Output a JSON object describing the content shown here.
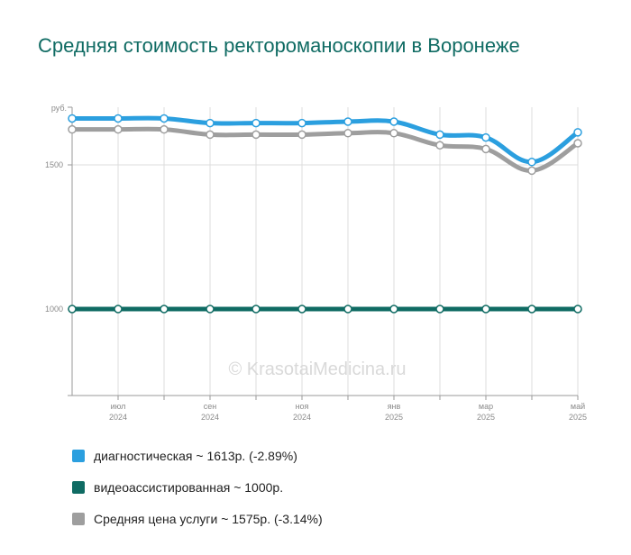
{
  "title": "Средняя стоимость ректороманоскопии в Воронеже",
  "watermark": "© KrasotaiMedicina.ru",
  "legend": [
    {
      "label": "диагностическая ~ 1613р. (-2.89%)",
      "color": "#2b9fdf"
    },
    {
      "label": "видеоассистированная ~ 1000р.",
      "color": "#0f6b63"
    },
    {
      "label": "Средняя цена услуги ~ 1575р. (-3.14%)",
      "color": "#9e9e9e"
    }
  ],
  "chart_data": {
    "type": "line",
    "ylabel": "руб.",
    "ylim": [
      700,
      1700
    ],
    "yticks": [
      1000,
      1500
    ],
    "xticks": [
      {
        "idx": 1,
        "line1": "июл",
        "line2": "2024"
      },
      {
        "idx": 3,
        "line1": "сен",
        "line2": "2024"
      },
      {
        "idx": 5,
        "line1": "ноя",
        "line2": "2024"
      },
      {
        "idx": 7,
        "line1": "янв",
        "line2": "2025"
      },
      {
        "idx": 9,
        "line1": "мар",
        "line2": "2025"
      },
      {
        "idx": 11,
        "line1": "май",
        "line2": "2025"
      }
    ],
    "x": [
      "2024-06",
      "2024-07",
      "2024-08",
      "2024-09",
      "2024-10",
      "2024-11",
      "2024-12",
      "2025-01",
      "2025-02",
      "2025-03",
      "2025-04",
      "2025-05"
    ],
    "series": [
      {
        "name": "диагностическая",
        "color": "#2b9fdf",
        "values": [
          1661,
          1661,
          1661,
          1645,
          1645,
          1645,
          1650,
          1650,
          1605,
          1595,
          1510,
          1613
        ]
      },
      {
        "name": "Средняя цена услуги",
        "color": "#9e9e9e",
        "values": [
          1623,
          1623,
          1623,
          1605,
          1605,
          1605,
          1610,
          1610,
          1568,
          1555,
          1480,
          1575
        ]
      },
      {
        "name": "видеоассистированная",
        "color": "#0f6b63",
        "values": [
          1000,
          1000,
          1000,
          1000,
          1000,
          1000,
          1000,
          1000,
          1000,
          1000,
          1000,
          1000
        ]
      }
    ]
  }
}
